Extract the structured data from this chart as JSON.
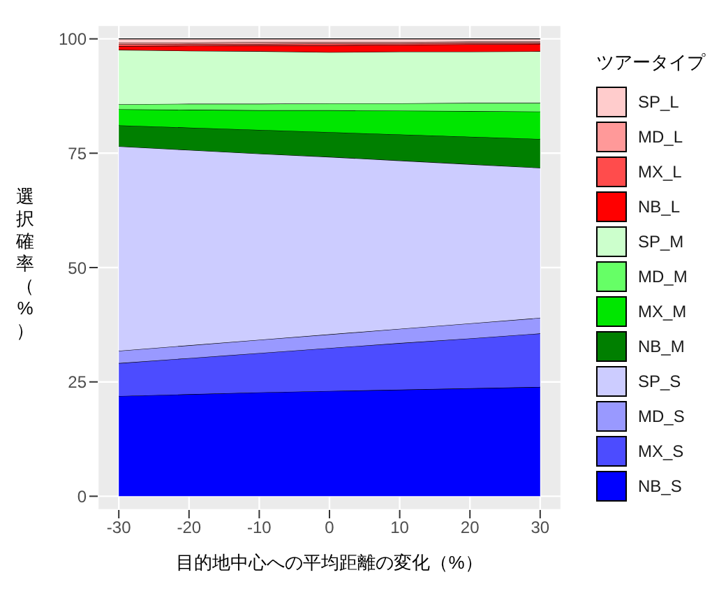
{
  "chart_data": {
    "type": "area",
    "stacked": true,
    "xlabel": "目的地中心への平均距離の変化（%）",
    "ylabel": "選択確率（%）",
    "legend_title": "ツアータイプ",
    "legend": "right",
    "grid": true,
    "x": [
      -30,
      -20,
      -10,
      0,
      10,
      20,
      30
    ],
    "xlim": [
      -33,
      33
    ],
    "xticks": [
      -30,
      -20,
      -10,
      0,
      10,
      20,
      30
    ],
    "ylim": [
      -3,
      103
    ],
    "yticks": [
      0,
      25,
      50,
      75,
      100
    ],
    "series": [
      {
        "name": "NB_S",
        "color": "#0000ff",
        "values": [
          21.9,
          22.3,
          22.7,
          23.0,
          23.3,
          23.6,
          23.9
        ]
      },
      {
        "name": "MX_S",
        "color": "#4c4cff",
        "values": [
          7.2,
          7.9,
          8.6,
          9.4,
          10.2,
          10.9,
          11.7
        ]
      },
      {
        "name": "MD_S",
        "color": "#9999ff",
        "values": [
          2.7,
          2.8,
          2.9,
          3.0,
          3.1,
          3.3,
          3.4
        ]
      },
      {
        "name": "SP_S",
        "color": "#ccccff",
        "values": [
          44.7,
          42.7,
          40.7,
          38.8,
          36.8,
          34.8,
          32.8
        ]
      },
      {
        "name": "NB_M",
        "color": "#007f00",
        "values": [
          4.6,
          4.9,
          5.2,
          5.4,
          5.7,
          6.0,
          6.3
        ]
      },
      {
        "name": "MX_M",
        "color": "#00e600",
        "values": [
          3.5,
          3.9,
          4.3,
          4.8,
          5.2,
          5.6,
          6.0
        ]
      },
      {
        "name": "MD_M",
        "color": "#66ff66",
        "values": [
          1.1,
          1.3,
          1.4,
          1.5,
          1.6,
          1.8,
          1.9
        ]
      },
      {
        "name": "SP_M",
        "color": "#ccffcc",
        "values": [
          11.9,
          11.6,
          11.5,
          11.2,
          11.3,
          11.2,
          11.3
        ]
      },
      {
        "name": "NB_L",
        "color": "#ff0000",
        "values": [
          0.8,
          1.1,
          1.3,
          1.5,
          1.5,
          1.6,
          1.6
        ]
      },
      {
        "name": "MX_L",
        "color": "#ff4c4c",
        "values": [
          0.4,
          0.4,
          0.3,
          0.4,
          0.3,
          0.3,
          0.2
        ]
      },
      {
        "name": "MD_L",
        "color": "#ff9999",
        "values": [
          0.4,
          0.3,
          0.4,
          0.3,
          0.3,
          0.3,
          0.3
        ]
      },
      {
        "name": "SP_L",
        "color": "#ffcccc",
        "values": [
          0.8,
          0.8,
          0.7,
          0.7,
          0.7,
          0.6,
          0.6
        ]
      }
    ]
  }
}
